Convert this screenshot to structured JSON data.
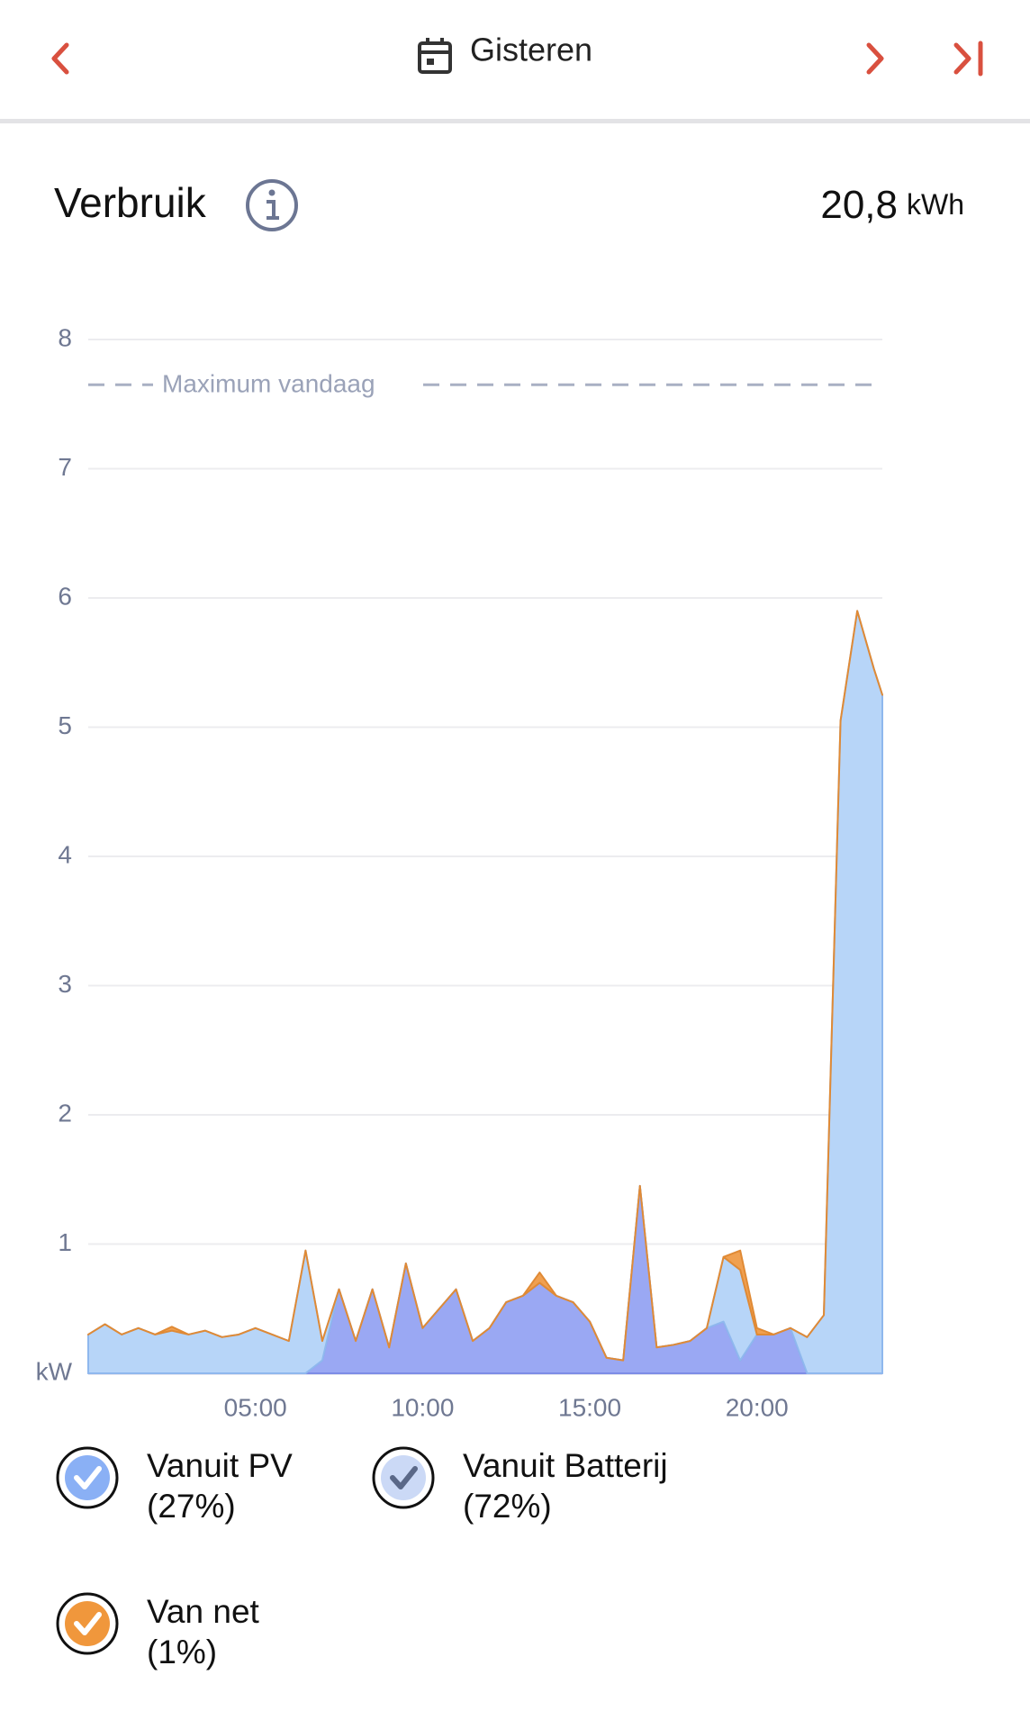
{
  "header": {
    "title": "Gisteren"
  },
  "chart_data": {
    "type": "stacked-area",
    "title": "Verbruik",
    "total": {
      "value": "20,8",
      "unit": "kWh"
    },
    "x": [
      0,
      0.5,
      1,
      1.5,
      2,
      2.5,
      3,
      3.5,
      4,
      4.5,
      5,
      5.5,
      6,
      6.5,
      7,
      7.5,
      8,
      8.5,
      9,
      9.5,
      10,
      10.5,
      11,
      11.5,
      12,
      12.5,
      13,
      13.5,
      14,
      14.5,
      15,
      15.5,
      16,
      16.5,
      17,
      17.5,
      18,
      18.5,
      19,
      19.5,
      20,
      20.5,
      21,
      21.5,
      22,
      22.5,
      23,
      23.5,
      23.75
    ],
    "xlim": [
      0,
      23.75
    ],
    "xticks": [
      {
        "value": 5,
        "label": "05:00"
      },
      {
        "value": 10,
        "label": "10:00"
      },
      {
        "value": 15,
        "label": "15:00"
      },
      {
        "value": 20,
        "label": "20:00"
      }
    ],
    "ylim": [
      0,
      8
    ],
    "yticks": [
      {
        "value": 0,
        "label": "kW"
      },
      1,
      2,
      3,
      4,
      5,
      6,
      7,
      8
    ],
    "grid": true,
    "max_line": {
      "label": "Maximum vandaag",
      "value": 7.65
    },
    "series": [
      {
        "name": "Vanuit PV",
        "share": "(27%)",
        "color": "#9aa8f3",
        "stroke": "#7d8de6",
        "legend_color": "#8ab0f5",
        "check_color": "#ffffff",
        "values": [
          0,
          0,
          0,
          0,
          0,
          0,
          0,
          0,
          0,
          0,
          0,
          0,
          0,
          0,
          0.1,
          0.65,
          0.25,
          0.65,
          0.2,
          0.85,
          0.35,
          0.5,
          0.65,
          0.25,
          0.35,
          0.55,
          0.6,
          0.7,
          0.6,
          0.55,
          0.4,
          0.12,
          0.1,
          1.45,
          0.2,
          0.22,
          0.25,
          0.35,
          0.4,
          0.1,
          0.3,
          0.3,
          0.35,
          0,
          0,
          0,
          0,
          0,
          0
        ]
      },
      {
        "name": "Vanuit Batterij",
        "share": "(72%)",
        "color": "#b7d5f8",
        "stroke": "#8fb8ee",
        "legend_color": "#cbd9f6",
        "check_color": "#5a6888",
        "values": [
          0.3,
          0.38,
          0.3,
          0.35,
          0.3,
          0.33,
          0.3,
          0.33,
          0.28,
          0.3,
          0.35,
          0.3,
          0.25,
          0.95,
          0.15,
          0,
          0,
          0,
          0,
          0,
          0,
          0,
          0,
          0,
          0,
          0,
          0,
          0,
          0,
          0,
          0,
          0,
          0,
          0,
          0,
          0,
          0,
          0,
          0.5,
          0.7,
          0,
          0,
          0,
          0.28,
          0.45,
          5.05,
          5.9,
          5.45,
          5.25
        ]
      },
      {
        "name": "Van net",
        "share": "(1%)",
        "color": "#f0a050",
        "stroke": "#e08a35",
        "legend_color": "#f0973c",
        "check_color": "#ffffff",
        "values": [
          0,
          0,
          0,
          0,
          0,
          0.03,
          0,
          0,
          0,
          0,
          0,
          0,
          0,
          0,
          0,
          0,
          0,
          0,
          0,
          0,
          0,
          0,
          0,
          0,
          0,
          0,
          0,
          0.08,
          0,
          0,
          0,
          0,
          0,
          0,
          0,
          0,
          0,
          0,
          0,
          0.15,
          0.05,
          0,
          0,
          0,
          0,
          0,
          0,
          0,
          0
        ]
      }
    ]
  }
}
